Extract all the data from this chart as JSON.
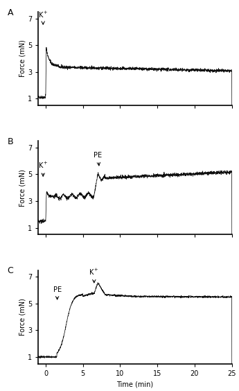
{
  "panels": [
    "A",
    "B",
    "C"
  ],
  "xlim": [
    -1,
    25
  ],
  "ylim": [
    0.5,
    7.5
  ],
  "yticks": [
    1,
    3,
    5,
    7
  ],
  "xticks": [
    0,
    5,
    10,
    15,
    20,
    25
  ],
  "xlabel": "Time (min)",
  "ylabel": "Force (mN)",
  "trace_color": "#111111",
  "noise_amplitude": 0.055,
  "background_color": "#ffffff",
  "fontsize_label": 7,
  "fontsize_panel": 9,
  "figsize": [
    3.45,
    5.64
  ],
  "dpi": 100
}
